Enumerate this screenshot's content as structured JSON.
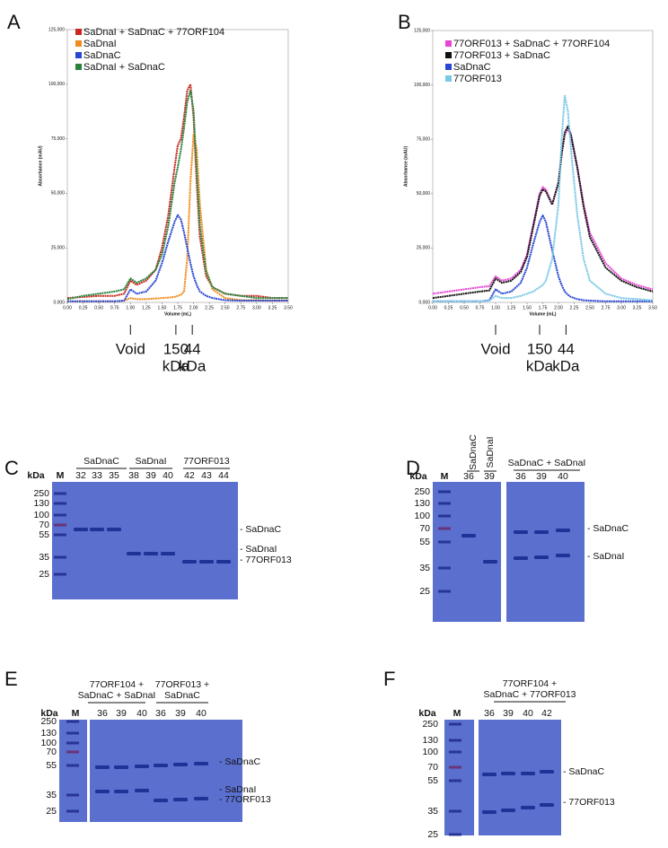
{
  "chart_data": [
    {
      "type": "line",
      "panel": "A",
      "ylabel": "Absorbance (mAU)",
      "xlabel": "Volume  (mL)",
      "xlim": [
        0,
        3.5
      ],
      "ylim": [
        0,
        125000
      ],
      "xticks": [
        {
          "value": 0,
          "label": "0.00"
        },
        {
          "value": 0.25,
          "label": "0.25"
        },
        {
          "value": 0.5,
          "label": "0.50"
        },
        {
          "value": 0.75,
          "label": "0.75"
        },
        {
          "value": 1,
          "label": "1.00"
        },
        {
          "value": 1.25,
          "label": "1.25"
        },
        {
          "value": 1.5,
          "label": "1.50"
        },
        {
          "value": 1.75,
          "label": "1.75"
        },
        {
          "value": 2,
          "label": "2.00"
        },
        {
          "value": 2.25,
          "label": "2.25"
        },
        {
          "value": 2.5,
          "label": "2.50"
        },
        {
          "value": 2.75,
          "label": "2.75"
        },
        {
          "value": 3,
          "label": "3.00"
        },
        {
          "value": 3.25,
          "label": "3.25"
        },
        {
          "value": 3.5,
          "label": "3.50"
        }
      ],
      "yticks": [
        {
          "value": 0,
          "label": "0.000"
        },
        {
          "value": 25000,
          "label": "25,000"
        },
        {
          "value": 50000,
          "label": "50,000"
        },
        {
          "value": 75000,
          "label": "75,000"
        },
        {
          "value": 100000,
          "label": "100,000"
        },
        {
          "value": 125000,
          "label": "125,000"
        }
      ],
      "x": [
        0,
        0.25,
        0.5,
        0.75,
        0.9,
        1.0,
        1.1,
        1.25,
        1.4,
        1.5,
        1.6,
        1.7,
        1.75,
        1.8,
        1.85,
        1.9,
        1.95,
        2.0,
        2.05,
        2.1,
        2.2,
        2.3,
        2.5,
        2.75,
        3.0,
        3.25,
        3.5
      ],
      "series": [
        {
          "name": "SaDnaI + SaDnaC + 77ORF104",
          "color": "#c8281e",
          "values": [
            2000,
            2500,
            3000,
            3000,
            4000,
            10000,
            8000,
            10000,
            15000,
            25000,
            40000,
            62000,
            72000,
            75000,
            85000,
            97000,
            100000,
            85000,
            55000,
            30000,
            12000,
            7000,
            4000,
            3000,
            3000,
            2000,
            2000
          ]
        },
        {
          "name": "SaDnaI",
          "color": "#f08c1e",
          "values": [
            500,
            500,
            500,
            500,
            800,
            2000,
            1500,
            1500,
            1800,
            2000,
            2200,
            2500,
            3000,
            3500,
            5000,
            20000,
            55000,
            77000,
            70000,
            45000,
            15000,
            6000,
            2000,
            1000,
            1000,
            800,
            800
          ]
        },
        {
          "name": "SaDnaC",
          "color": "#2846d2",
          "values": [
            500,
            500,
            500,
            500,
            800,
            6000,
            4000,
            5000,
            10000,
            18000,
            28000,
            37000,
            40000,
            38000,
            32000,
            25000,
            18000,
            12000,
            8000,
            5000,
            3000,
            2000,
            1000,
            800,
            800,
            800,
            800
          ]
        },
        {
          "name": "SaDnaI + SaDnaC",
          "color": "#28823c",
          "values": [
            1500,
            3000,
            4000,
            5000,
            6000,
            11000,
            9000,
            11000,
            15000,
            22000,
            35000,
            55000,
            62000,
            70000,
            80000,
            92000,
            97000,
            88000,
            60000,
            35000,
            14000,
            7000,
            4000,
            3000,
            2000,
            2000,
            2000
          ]
        }
      ],
      "annotations": [
        {
          "lines": [
            "Void"
          ],
          "x": 1.0
        },
        {
          "lines": [
            "150",
            "kDa"
          ],
          "x": 1.72
        },
        {
          "lines": [
            "44",
            "kDa"
          ],
          "x": 1.98
        }
      ]
    },
    {
      "type": "line",
      "panel": "B",
      "ylabel": "Absorbance (mAU)",
      "xlabel": "Volume  (mL)",
      "xlim": [
        0,
        3.5
      ],
      "ylim": [
        0,
        125000
      ],
      "xticks": [
        {
          "value": 0,
          "label": "0.00"
        },
        {
          "value": 0.25,
          "label": "0.25"
        },
        {
          "value": 0.5,
          "label": "0.50"
        },
        {
          "value": 0.75,
          "label": "0.75"
        },
        {
          "value": 1,
          "label": "1.00"
        },
        {
          "value": 1.25,
          "label": "1.25"
        },
        {
          "value": 1.5,
          "label": "1.50"
        },
        {
          "value": 1.75,
          "label": "1.75"
        },
        {
          "value": 2,
          "label": "2.00"
        },
        {
          "value": 2.25,
          "label": "2.25"
        },
        {
          "value": 2.5,
          "label": "2.50"
        },
        {
          "value": 2.75,
          "label": "2.75"
        },
        {
          "value": 3,
          "label": "3.00"
        },
        {
          "value": 3.25,
          "label": "3.25"
        },
        {
          "value": 3.5,
          "label": "3.50"
        }
      ],
      "yticks": [
        {
          "value": 0,
          "label": "0.000"
        },
        {
          "value": 25000,
          "label": "25,000"
        },
        {
          "value": 50000,
          "label": "50,000"
        },
        {
          "value": 75000,
          "label": "75,000"
        },
        {
          "value": 100000,
          "label": "100,000"
        },
        {
          "value": 125000,
          "label": "125,000"
        }
      ],
      "x": [
        0,
        0.25,
        0.5,
        0.75,
        0.9,
        1.0,
        1.1,
        1.25,
        1.4,
        1.5,
        1.6,
        1.7,
        1.75,
        1.8,
        1.9,
        2.0,
        2.05,
        2.1,
        2.15,
        2.2,
        2.3,
        2.4,
        2.5,
        2.75,
        3.0,
        3.25,
        3.5
      ],
      "series": [
        {
          "name": "77ORF013 + SaDnaC + 77ORF104",
          "color": "#e646d2",
          "values": [
            4000,
            5000,
            6000,
            7000,
            7500,
            12000,
            10000,
            11000,
            15000,
            22000,
            36000,
            50000,
            53000,
            52000,
            45000,
            55000,
            68000,
            77000,
            80000,
            76000,
            62000,
            45000,
            32000,
            18000,
            11000,
            8000,
            6000
          ]
        },
        {
          "name": "77ORF013 + SaDnaC",
          "color": "#111111",
          "values": [
            2000,
            3000,
            4000,
            5000,
            5500,
            11000,
            9000,
            10000,
            14000,
            21000,
            35000,
            49000,
            52000,
            51000,
            45000,
            55000,
            68000,
            78000,
            81000,
            77000,
            62000,
            44000,
            30000,
            16000,
            10000,
            7000,
            5000
          ]
        },
        {
          "name": "SaDnaC",
          "color": "#2846d2",
          "values": [
            500,
            500,
            500,
            500,
            1000,
            6000,
            4000,
            5000,
            9000,
            16000,
            27000,
            37000,
            40000,
            37000,
            24000,
            12000,
            8000,
            5000,
            3500,
            2500,
            1500,
            1000,
            800,
            500,
            500,
            500,
            500
          ]
        },
        {
          "name": "77ORF013",
          "color": "#78c8e6",
          "values": [
            500,
            500,
            500,
            500,
            800,
            3000,
            2000,
            2000,
            3000,
            4000,
            5000,
            7000,
            8000,
            10000,
            20000,
            45000,
            75000,
            95000,
            88000,
            70000,
            40000,
            20000,
            10000,
            4000,
            2000,
            1500,
            1000
          ]
        }
      ],
      "annotations": [
        {
          "lines": [
            "Void"
          ],
          "x": 1.0
        },
        {
          "lines": [
            "150",
            "kDa"
          ],
          "x": 1.7
        },
        {
          "lines": [
            "44",
            "kDa"
          ],
          "x": 2.12
        }
      ]
    }
  ],
  "gels": [
    {
      "panel": "C",
      "unit": "kDa",
      "lanes": [
        "M",
        "32",
        "33",
        "35",
        "38",
        "39",
        "40",
        "42",
        "43",
        "44"
      ],
      "headers": [
        [
          "SaDnaC"
        ],
        [
          "SaDnaI"
        ],
        [
          "77ORF013"
        ]
      ],
      "markers": [
        "250",
        "130",
        "100",
        "70",
        "55",
        "35",
        "25"
      ],
      "band_labels": [
        "- SaDnaC",
        "- SaDnaI",
        "- 77ORF013"
      ]
    },
    {
      "panel": "D",
      "unit": "kDa",
      "lanes": [
        "M",
        "36",
        "39",
        "36",
        "39",
        "40"
      ],
      "headers": [
        [
          "SaDnaC"
        ],
        [
          "SaDnaI"
        ],
        [
          "SaDnaC + SaDnaI"
        ]
      ],
      "markers": [
        "250",
        "130",
        "100",
        "70",
        "55",
        "35",
        "25"
      ],
      "band_labels": [
        "- SaDnaC",
        "- SaDnaI"
      ]
    },
    {
      "panel": "E",
      "unit": "kDa",
      "lanes": [
        "M",
        "36",
        "39",
        "40",
        "36",
        "39",
        "40"
      ],
      "headers": [
        [
          "77ORF104 +",
          "SaDnaC + SaDnaI"
        ],
        [
          "77ORF013 +",
          "SaDnaC"
        ]
      ],
      "markers": [
        "250",
        "130",
        "100",
        "70",
        "55",
        "35",
        "25"
      ],
      "band_labels": [
        "- SaDnaC",
        "- SaDnaI",
        "- 77ORF013"
      ]
    },
    {
      "panel": "F",
      "unit": "kDa",
      "lanes": [
        "M",
        "36",
        "39",
        "40",
        "42"
      ],
      "headers": [
        [
          "77ORF104 +",
          "SaDnaC + 77ORF013"
        ]
      ],
      "markers": [
        "250",
        "130",
        "100",
        "70",
        "55",
        "35",
        "25"
      ],
      "band_labels": [
        "- SaDnaC",
        "- 77ORF013"
      ]
    }
  ]
}
